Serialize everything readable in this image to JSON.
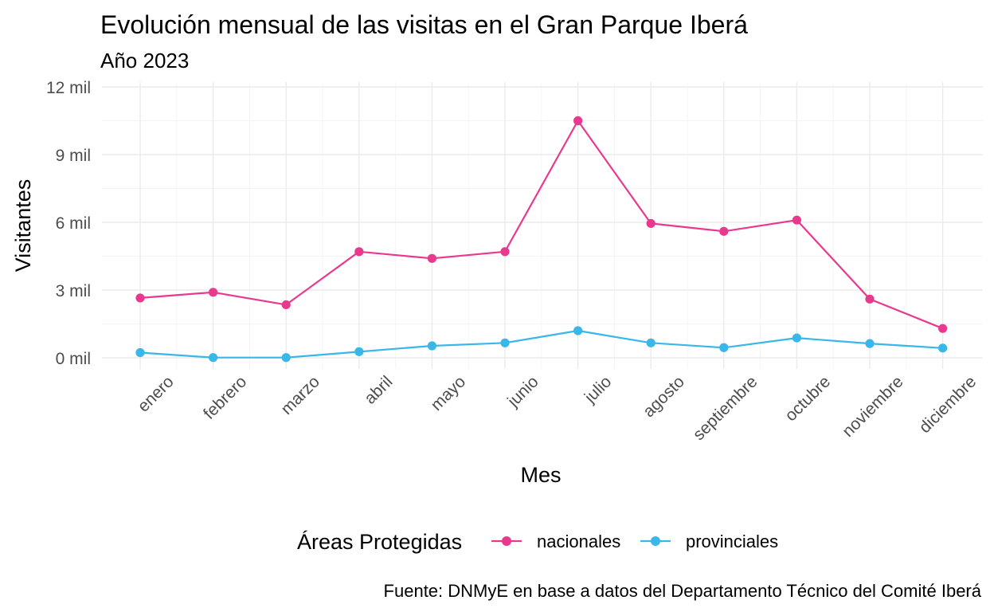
{
  "chart_data": {
    "type": "line",
    "title": "Evolución mensual de las visitas en el Gran Parque Iberá",
    "subtitle": "Año 2023",
    "xlabel": "Mes",
    "ylabel": "Visitantes",
    "caption": "Fuente: DNMyE en base a datos del Departamento Técnico del Comité Iberá",
    "categories": [
      "enero",
      "febrero",
      "marzo",
      "abril",
      "mayo",
      "junio",
      "julio",
      "agosto",
      "septiembre",
      "octubre",
      "noviembre",
      "diciembre"
    ],
    "y_ticks": [
      0,
      3000,
      6000,
      9000,
      12000
    ],
    "y_tick_labels": [
      "0 mil",
      "3 mil",
      "6 mil",
      "9 mil",
      "12 mil"
    ],
    "ylim": [
      0,
      12000
    ],
    "grid": true,
    "legend": {
      "title": "Áreas Protegidas",
      "position": "bottom"
    },
    "series": [
      {
        "name": "nacionales",
        "color": "#e8398f",
        "values": [
          2650,
          2900,
          2350,
          4700,
          4400,
          4700,
          10500,
          5950,
          5600,
          6100,
          2600,
          1300
        ]
      },
      {
        "name": "provinciales",
        "color": "#38b7e8",
        "values": [
          230,
          10,
          10,
          270,
          530,
          660,
          1200,
          660,
          450,
          880,
          630,
          430
        ]
      }
    ]
  }
}
